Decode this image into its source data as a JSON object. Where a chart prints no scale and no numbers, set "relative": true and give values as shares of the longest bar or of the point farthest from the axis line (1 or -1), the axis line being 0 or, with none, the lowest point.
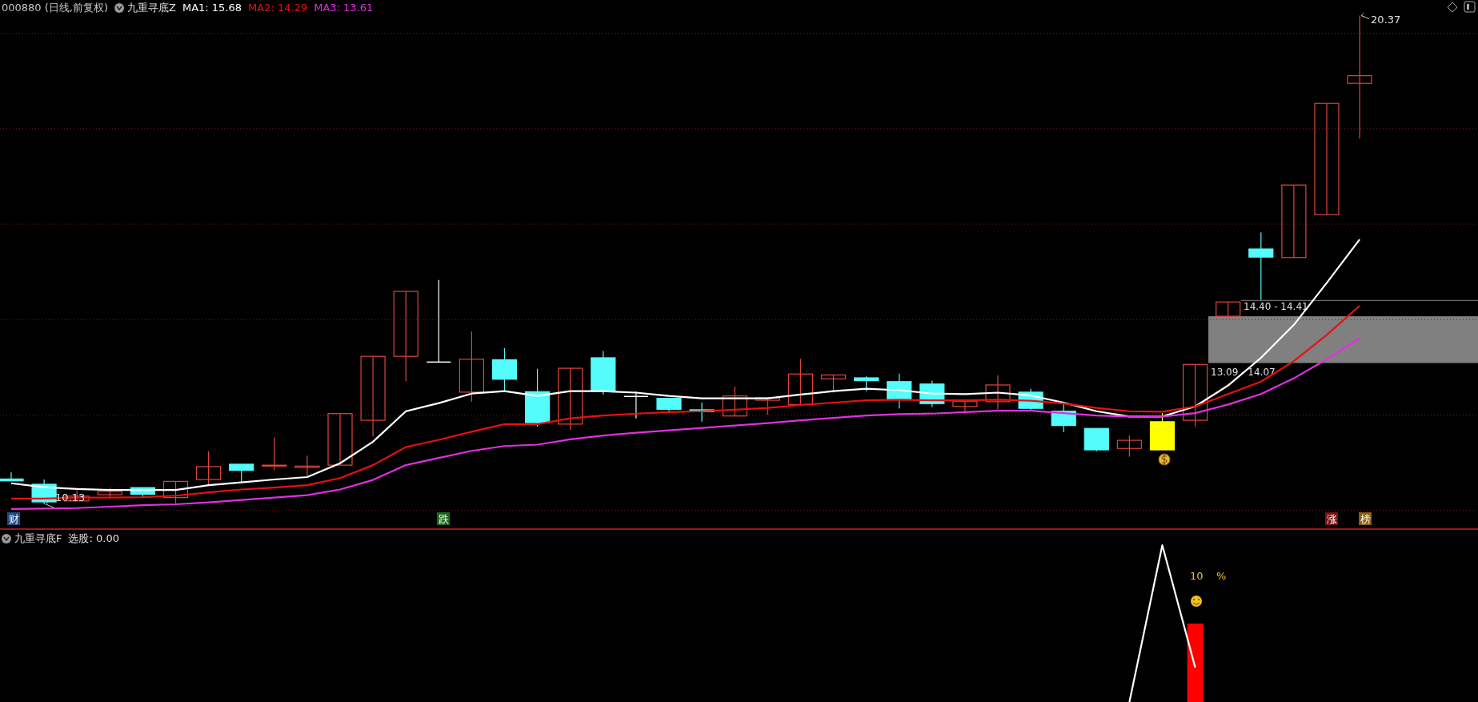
{
  "chart_data": [
    {
      "type": "candlestick",
      "title": "000880 (日线,前复权)",
      "subtitle": "九重寻底Z",
      "categories": [
        null,
        null,
        null,
        null,
        null,
        null,
        null,
        null,
        null,
        null,
        null,
        null,
        null,
        null,
        null,
        null,
        null,
        null,
        null,
        null,
        null,
        null,
        null,
        null,
        null,
        null,
        null,
        null,
        null,
        null,
        null,
        null,
        null,
        null,
        null,
        null,
        null,
        null,
        null,
        null,
        null,
        null
      ],
      "ohlc": [
        [
          10.66,
          10.8,
          10.62,
          10.62
        ],
        [
          10.55,
          10.65,
          10.13,
          10.18
        ],
        [
          10.2,
          10.42,
          10.2,
          10.3
        ],
        [
          10.33,
          10.48,
          10.25,
          10.4
        ],
        [
          10.48,
          10.48,
          10.27,
          10.34
        ],
        [
          10.27,
          10.61,
          10.15,
          10.61
        ],
        [
          10.65,
          11.24,
          10.52,
          10.92
        ],
        [
          10.97,
          10.97,
          10.6,
          10.84
        ],
        [
          10.93,
          11.53,
          10.84,
          10.95
        ],
        [
          10.9,
          11.15,
          10.73,
          10.93
        ],
        [
          10.95,
          12.03,
          10.95,
          12.03
        ],
        [
          11.89,
          13.23,
          11.55,
          13.23
        ],
        [
          13.23,
          14.59,
          12.71,
          14.59
        ],
        [
          13.11,
          14.83,
          13.11,
          13.11
        ],
        [
          12.48,
          13.75,
          12.28,
          13.17
        ],
        [
          13.16,
          13.4,
          12.5,
          12.75
        ],
        [
          12.49,
          12.97,
          11.76,
          11.84
        ],
        [
          11.81,
          12.98,
          11.69,
          12.98
        ],
        [
          13.2,
          13.34,
          12.43,
          12.5
        ],
        [
          12.39,
          12.49,
          11.93,
          12.39
        ],
        [
          12.35,
          12.35,
          12.08,
          12.12
        ],
        [
          12.11,
          12.26,
          11.86,
          12.07
        ],
        [
          11.98,
          12.6,
          11.98,
          12.4
        ],
        [
          12.31,
          12.36,
          12.0,
          12.36
        ],
        [
          12.22,
          13.18,
          12.22,
          12.86
        ],
        [
          12.76,
          12.84,
          12.47,
          12.84
        ],
        [
          12.78,
          12.81,
          12.5,
          12.72
        ],
        [
          12.7,
          12.87,
          12.14,
          12.33
        ],
        [
          12.65,
          12.72,
          12.17,
          12.24
        ],
        [
          12.18,
          12.29,
          12.04,
          12.29
        ],
        [
          12.28,
          12.83,
          12.12,
          12.63
        ],
        [
          12.48,
          12.55,
          12.1,
          12.14
        ],
        [
          12.08,
          12.23,
          11.64,
          11.78
        ],
        [
          11.72,
          11.72,
          11.24,
          11.27
        ],
        [
          11.3,
          11.57,
          11.13,
          11.47
        ],
        [
          11.86,
          12.04,
          11.27,
          11.27
        ],
        [
          11.89,
          13.06,
          11.76,
          13.06
        ],
        [
          14.07,
          14.37,
          14.07,
          14.37
        ],
        [
          15.48,
          15.83,
          14.41,
          15.31
        ],
        [
          15.3,
          16.82,
          15.3,
          16.82
        ],
        [
          16.2,
          18.53,
          16.2,
          18.53
        ],
        [
          18.95,
          20.37,
          17.79,
          19.11
        ]
      ],
      "colors": [
        "#54fcfc",
        "#54fcfc",
        "#e0463e",
        "#e0463e",
        "#54fcfc",
        "#e0463e",
        "#e0463e",
        "#54fcfc",
        "#e0463e",
        "#e0463e",
        "#e0463e",
        "#e0463e",
        "#e0463e",
        "#ffffff",
        "#e0463e",
        "#54fcfc",
        "#54fcfc",
        "#e0463e",
        "#54fcfc",
        "#ffffff",
        "#54fcfc",
        "#54fcfc",
        "#e0463e",
        "#e0463e",
        "#e0463e",
        "#e0463e",
        "#54fcfc",
        "#54fcfc",
        "#54fcfc",
        "#e0463e",
        "#e0463e",
        "#54fcfc",
        "#54fcfc",
        "#54fcfc",
        "#e0463e",
        "#ffff00",
        "#e0463e",
        "#e0463e",
        "#54fcfc",
        "#e0463e",
        "#e0463e",
        "#e0463e"
      ],
      "series": [
        {
          "name": "MA1: 15.68",
          "type": "line",
          "color": "#ffffff",
          "values": [
            10.57,
            10.49,
            10.45,
            10.43,
            10.43,
            10.43,
            10.53,
            10.59,
            10.65,
            10.7,
            10.99,
            11.44,
            12.08,
            12.25,
            12.45,
            12.5,
            12.4,
            12.5,
            12.5,
            12.47,
            12.4,
            12.35,
            12.35,
            12.35,
            12.43,
            12.5,
            12.55,
            12.52,
            12.45,
            12.44,
            12.47,
            12.41,
            12.26,
            12.08,
            11.97,
            11.97,
            12.18,
            12.62,
            13.2,
            13.89,
            14.77,
            15.68
          ]
        },
        {
          "name": "MA2: 14.29",
          "type": "line",
          "color": "#e81010",
          "values": [
            10.25,
            10.25,
            10.27,
            10.27,
            10.28,
            10.31,
            10.38,
            10.44,
            10.48,
            10.53,
            10.68,
            10.95,
            11.33,
            11.48,
            11.65,
            11.81,
            11.81,
            11.93,
            11.99,
            12.03,
            12.06,
            12.08,
            12.11,
            12.15,
            12.21,
            12.26,
            12.31,
            12.32,
            12.31,
            12.31,
            12.32,
            12.3,
            12.24,
            12.15,
            12.08,
            12.07,
            12.18,
            12.44,
            12.7,
            13.13,
            13.68,
            14.29
          ]
        },
        {
          "name": "MA3: 13.61",
          "type": "line",
          "color": "#e030e0",
          "values": [
            10.03,
            10.04,
            10.05,
            10.08,
            10.11,
            10.13,
            10.17,
            10.22,
            10.27,
            10.32,
            10.44,
            10.64,
            10.95,
            11.1,
            11.25,
            11.35,
            11.38,
            11.49,
            11.57,
            11.63,
            11.68,
            11.73,
            11.78,
            11.83,
            11.89,
            11.94,
            11.99,
            12.02,
            12.03,
            12.06,
            12.09,
            12.09,
            12.04,
            11.99,
            11.97,
            11.97,
            12.04,
            12.22,
            12.44,
            12.77,
            13.17,
            13.61
          ]
        }
      ],
      "yticks": [
        {
          "value": 10,
          "label": null
        },
        {
          "value": 12,
          "label": null
        },
        {
          "value": 14,
          "label": null
        },
        {
          "value": 16,
          "label": null
        },
        {
          "value": 18,
          "label": null
        },
        {
          "value": 20,
          "label": null
        }
      ],
      "grid": "y",
      "legend": "top left",
      "bands": [
        {
          "axis": "y",
          "from": 13.09,
          "to": 14.07,
          "label": "13.09 - 14.07",
          "color": "#808080"
        },
        {
          "axis": "y",
          "from": 14.4,
          "to": 14.41,
          "label": "14.40 - 14.41",
          "color": "#808080"
        }
      ],
      "annotations": [
        "20.37",
        "10.13",
        "财",
        "跌",
        "涨",
        "榜"
      ]
    },
    {
      "type": "bar",
      "title": "九重寻底F",
      "subtitle": "选股: 0.00",
      "relative": true,
      "categories": [
        null,
        null,
        null,
        null,
        null,
        null,
        null,
        null,
        null,
        null,
        null,
        null,
        null,
        null,
        null,
        null,
        null,
        null,
        null,
        null,
        null,
        null,
        null,
        null,
        null,
        null,
        null,
        null,
        null,
        null,
        null,
        null,
        null,
        null,
        null,
        null,
        null,
        null,
        null,
        null,
        null,
        null
      ],
      "series": [
        {
          "type": "bar",
          "color": "#ff0000",
          "values": [
            null,
            null,
            null,
            null,
            null,
            null,
            null,
            null,
            null,
            null,
            null,
            null,
            null,
            null,
            null,
            null,
            null,
            null,
            null,
            null,
            null,
            null,
            null,
            null,
            null,
            null,
            null,
            null,
            null,
            null,
            null,
            null,
            null,
            null,
            null,
            null,
            0.5,
            null,
            null,
            null,
            null,
            null
          ]
        },
        {
          "type": "line",
          "color": "#ffffff",
          "values": [
            null,
            null,
            null,
            null,
            null,
            null,
            null,
            null,
            null,
            null,
            null,
            null,
            null,
            null,
            null,
            null,
            null,
            null,
            null,
            null,
            null,
            null,
            null,
            null,
            null,
            null,
            null,
            null,
            null,
            null,
            null,
            null,
            null,
            null,
            0,
            1,
            0.22,
            null,
            null,
            null,
            null,
            null
          ]
        }
      ],
      "annotations": [
        "10 %"
      ]
    }
  ]
}
